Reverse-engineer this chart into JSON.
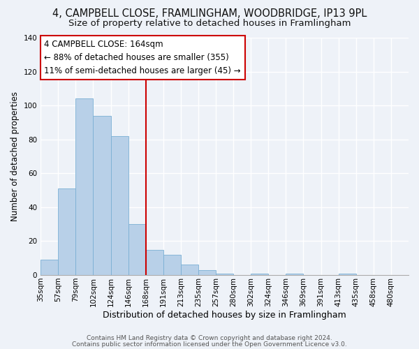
{
  "title": "4, CAMPBELL CLOSE, FRAMLINGHAM, WOODBRIDGE, IP13 9PL",
  "subtitle": "Size of property relative to detached houses in Framlingham",
  "xlabel": "Distribution of detached houses by size in Framlingham",
  "ylabel": "Number of detached properties",
  "bar_values": [
    9,
    51,
    104,
    94,
    82,
    30,
    15,
    12,
    6,
    3,
    1,
    0,
    1,
    0,
    1,
    0,
    0,
    1
  ],
  "all_labels": [
    "35sqm",
    "57sqm",
    "79sqm",
    "102sqm",
    "124sqm",
    "146sqm",
    "168sqm",
    "191sqm",
    "213sqm",
    "235sqm",
    "257sqm",
    "280sqm",
    "302sqm",
    "324sqm",
    "346sqm",
    "369sqm",
    "391sqm",
    "413sqm",
    "435sqm",
    "458sqm",
    "480sqm"
  ],
  "bar_color": "#b8d0e8",
  "bar_edge_color": "#7aafd4",
  "vline_x_index": 6,
  "vline_color": "#cc0000",
  "annotation_line1": "4 CAMPBELL CLOSE: 164sqm",
  "annotation_line2": "← 88% of detached houses are smaller (355)",
  "annotation_line3": "11% of semi-detached houses are larger (45) →",
  "ylim": [
    0,
    140
  ],
  "yticks": [
    0,
    20,
    40,
    60,
    80,
    100,
    120,
    140
  ],
  "footnote1": "Contains HM Land Registry data © Crown copyright and database right 2024.",
  "footnote2": "Contains public sector information licensed under the Open Government Licence v3.0.",
  "bg_color": "#eef2f8",
  "title_fontsize": 10.5,
  "subtitle_fontsize": 9.5,
  "annotation_fontsize": 8.5,
  "xlabel_fontsize": 9,
  "ylabel_fontsize": 8.5,
  "tick_fontsize": 7.5,
  "footnote_fontsize": 6.5
}
